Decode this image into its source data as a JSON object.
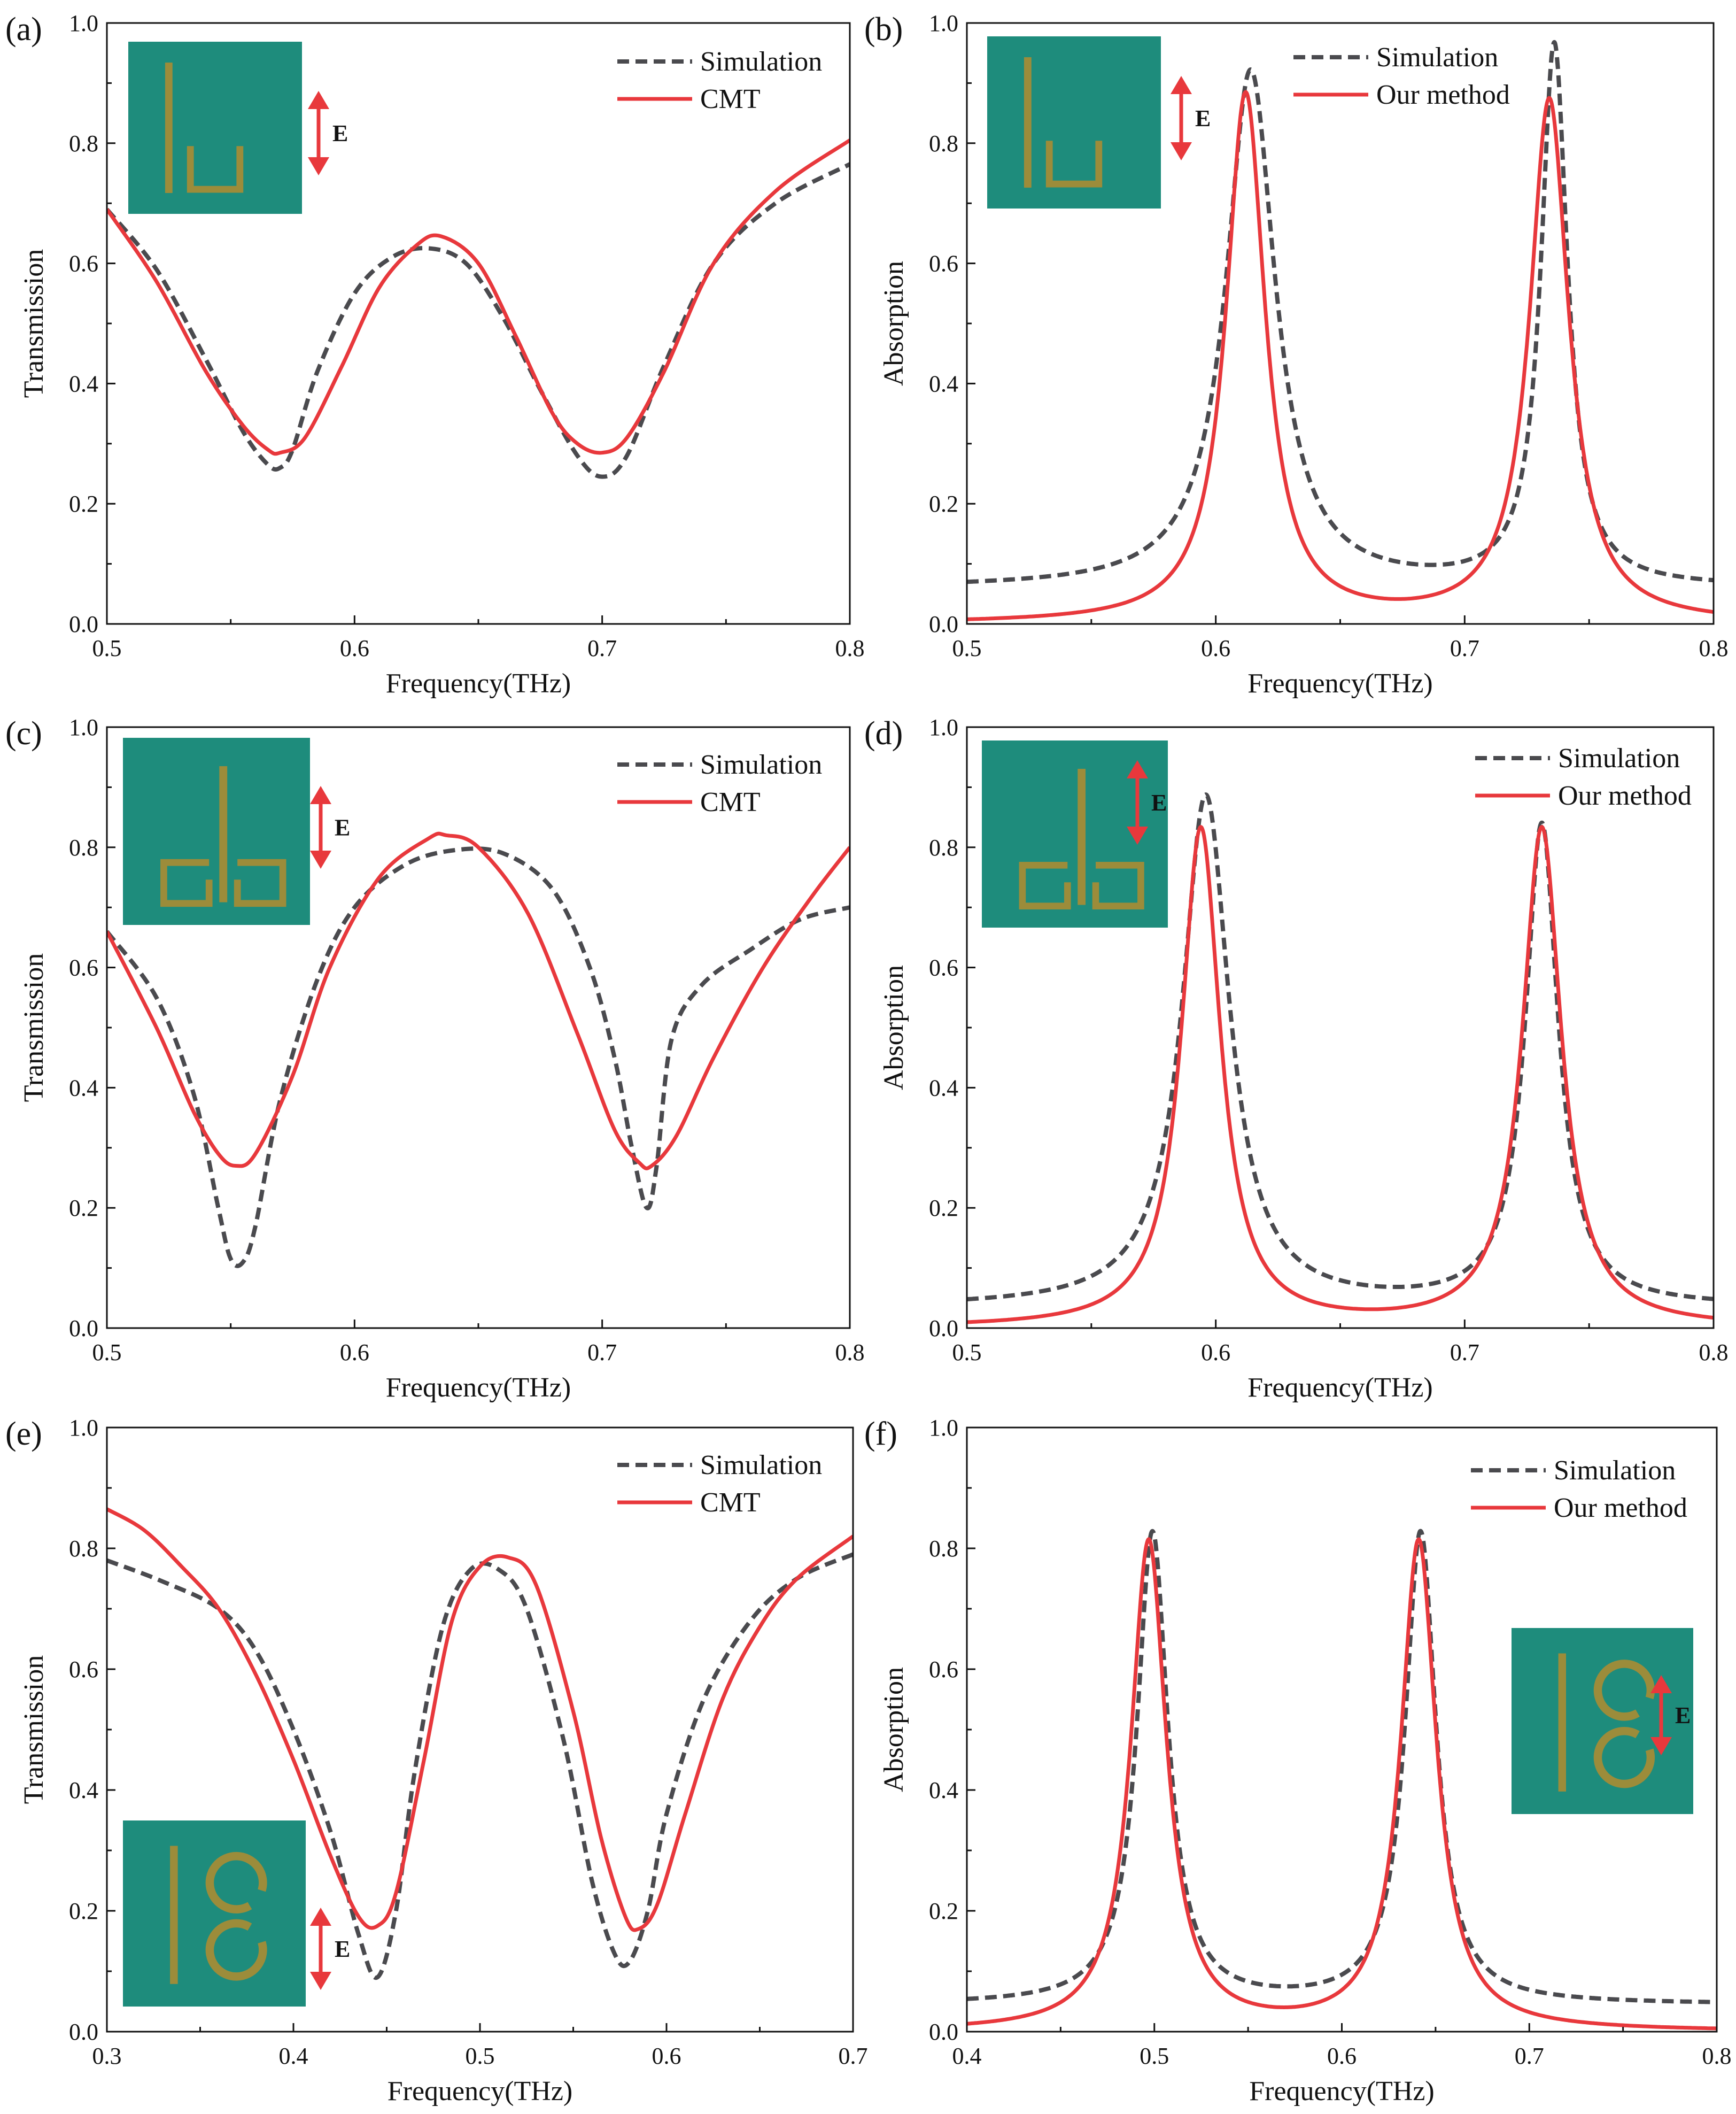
{
  "figure": {
    "colors": {
      "simulation": "#4a4a4e",
      "model": "#e8383c",
      "inset_bg": "#1e8c7c",
      "inset_metal": "#9c8c3a",
      "arrow": "#e8383c",
      "axis": "#111111"
    },
    "inset_e_label": "E"
  },
  "chart_data": [
    {
      "panel": "(a)",
      "type": "line",
      "xlabel": "Frequency(THz)",
      "ylabel": "Transmission",
      "xlim": [
        0.5,
        0.8
      ],
      "ylim": [
        0.0,
        1.0
      ],
      "xticks": [
        "0.5",
        "0.6",
        "0.7",
        "0.8"
      ],
      "yticks": [
        "0.0",
        "0.2",
        "0.4",
        "0.6",
        "0.8",
        "1.0"
      ],
      "legend": [
        "Simulation",
        "CMT"
      ],
      "inset": "bar-u",
      "series": [
        {
          "name": "Simulation",
          "style": "dashed",
          "x": [
            0.5,
            0.52,
            0.54,
            0.555,
            0.565,
            0.57,
            0.575,
            0.585,
            0.6,
            0.615,
            0.63,
            0.645,
            0.66,
            0.675,
            0.69,
            0.7,
            0.71,
            0.725,
            0.745,
            0.77,
            0.8
          ],
          "y": [
            0.69,
            0.59,
            0.44,
            0.32,
            0.265,
            0.26,
            0.29,
            0.42,
            0.55,
            0.61,
            0.625,
            0.6,
            0.51,
            0.39,
            0.28,
            0.245,
            0.28,
            0.43,
            0.6,
            0.7,
            0.765
          ]
        },
        {
          "name": "CMT",
          "style": "solid",
          "x": [
            0.5,
            0.52,
            0.54,
            0.555,
            0.565,
            0.57,
            0.58,
            0.595,
            0.61,
            0.625,
            0.635,
            0.65,
            0.665,
            0.68,
            0.69,
            0.7,
            0.71,
            0.725,
            0.745,
            0.77,
            0.8
          ],
          "y": [
            0.69,
            0.57,
            0.42,
            0.33,
            0.29,
            0.285,
            0.31,
            0.43,
            0.56,
            0.63,
            0.645,
            0.6,
            0.48,
            0.35,
            0.3,
            0.285,
            0.31,
            0.42,
            0.6,
            0.72,
            0.805
          ]
        }
      ]
    },
    {
      "panel": "(b)",
      "type": "line",
      "xlabel": "Frequency(THz)",
      "ylabel": "Absorption",
      "xlim": [
        0.5,
        0.8
      ],
      "ylim": [
        0.0,
        1.0
      ],
      "xticks": [
        "0.5",
        "0.6",
        "0.7",
        "0.8"
      ],
      "yticks": [
        "0.0",
        "0.2",
        "0.4",
        "0.6",
        "0.8",
        "1.0"
      ],
      "legend": [
        "Simulation",
        "Our method"
      ],
      "inset": "bar-u",
      "series": [
        {
          "name": "Simulation",
          "style": "dashed",
          "type": "lorentz",
          "baseline": 0.06,
          "xmin": 0.5,
          "xmax": 0.8,
          "peaks": [
            {
              "x0": 0.614,
              "amp": 0.86,
              "w": 0.024
            },
            {
              "x0": 0.736,
              "amp": 0.9,
              "w": 0.013
            }
          ]
        },
        {
          "name": "Our method",
          "style": "solid",
          "type": "lorentz",
          "baseline": 0.0,
          "xmin": 0.5,
          "xmax": 0.8,
          "peaks": [
            {
              "x0": 0.612,
              "amp": 0.88,
              "w": 0.019
            },
            {
              "x0": 0.734,
              "amp": 0.87,
              "w": 0.019
            }
          ]
        }
      ]
    },
    {
      "panel": "(c)",
      "type": "line",
      "xlabel": "Frequency(THz)",
      "ylabel": "Transmission",
      "xlim": [
        0.5,
        0.8
      ],
      "ylim": [
        0.0,
        1.0
      ],
      "xticks": [
        "0.5",
        "0.6",
        "0.7",
        "0.8"
      ],
      "yticks": [
        "0.0",
        "0.2",
        "0.4",
        "0.6",
        "0.8",
        "1.0"
      ],
      "legend": [
        "Simulation",
        "CMT"
      ],
      "inset": "bar-squares",
      "series": [
        {
          "name": "Simulation",
          "style": "dashed",
          "x": [
            0.5,
            0.52,
            0.535,
            0.545,
            0.55,
            0.555,
            0.56,
            0.57,
            0.585,
            0.6,
            0.62,
            0.64,
            0.66,
            0.68,
            0.695,
            0.705,
            0.712,
            0.718,
            0.722,
            0.728,
            0.74,
            0.76,
            0.78,
            0.8
          ],
          "y": [
            0.66,
            0.55,
            0.39,
            0.2,
            0.115,
            0.11,
            0.17,
            0.38,
            0.58,
            0.7,
            0.77,
            0.795,
            0.79,
            0.73,
            0.6,
            0.45,
            0.3,
            0.2,
            0.27,
            0.48,
            0.57,
            0.63,
            0.68,
            0.7
          ]
        },
        {
          "name": "CMT",
          "style": "solid",
          "x": [
            0.5,
            0.52,
            0.535,
            0.545,
            0.552,
            0.56,
            0.575,
            0.59,
            0.61,
            0.63,
            0.637,
            0.65,
            0.67,
            0.69,
            0.705,
            0.715,
            0.72,
            0.73,
            0.745,
            0.765,
            0.785,
            0.8
          ],
          "y": [
            0.66,
            0.5,
            0.36,
            0.29,
            0.27,
            0.29,
            0.42,
            0.6,
            0.75,
            0.815,
            0.82,
            0.8,
            0.69,
            0.49,
            0.33,
            0.275,
            0.27,
            0.32,
            0.45,
            0.6,
            0.72,
            0.8
          ]
        }
      ]
    },
    {
      "panel": "(d)",
      "type": "line",
      "xlabel": "Frequency(THz)",
      "ylabel": "Absorption",
      "xlim": [
        0.5,
        0.8
      ],
      "ylim": [
        0.0,
        1.0
      ],
      "xticks": [
        "0.5",
        "0.6",
        "0.7",
        "0.8"
      ],
      "yticks": [
        "0.0",
        "0.2",
        "0.4",
        "0.6",
        "0.8",
        "1.0"
      ],
      "legend": [
        "Simulation",
        "Our method"
      ],
      "inset": "bar-squares",
      "series": [
        {
          "name": "Simulation",
          "style": "dashed",
          "type": "lorentz",
          "baseline": 0.035,
          "xmin": 0.5,
          "xmax": 0.8,
          "peaks": [
            {
              "x0": 0.596,
              "amp": 0.85,
              "w": 0.023
            },
            {
              "x0": 0.731,
              "amp": 0.8,
              "w": 0.016
            }
          ]
        },
        {
          "name": "Our method",
          "style": "solid",
          "type": "lorentz",
          "baseline": 0.0,
          "xmin": 0.5,
          "xmax": 0.8,
          "peaks": [
            {
              "x0": 0.594,
              "amp": 0.83,
              "w": 0.019
            },
            {
              "x0": 0.731,
              "amp": 0.83,
              "w": 0.019
            }
          ]
        }
      ]
    },
    {
      "panel": "(e)",
      "type": "line",
      "xlabel": "Frequency(THz)",
      "ylabel": "Transmission",
      "xlim": [
        0.3,
        0.7
      ],
      "ylim": [
        0.0,
        1.0
      ],
      "xticks": [
        "0.3",
        "0.4",
        "0.5",
        "0.6",
        "0.7"
      ],
      "yticks": [
        "0.0",
        "0.2",
        "0.4",
        "0.6",
        "0.8",
        "1.0"
      ],
      "legend": [
        "Simulation",
        "CMT"
      ],
      "inset": "bar-rings",
      "series": [
        {
          "name": "Simulation",
          "style": "dashed",
          "x": [
            0.3,
            0.33,
            0.36,
            0.38,
            0.4,
            0.42,
            0.435,
            0.445,
            0.455,
            0.465,
            0.48,
            0.495,
            0.51,
            0.525,
            0.545,
            0.56,
            0.572,
            0.58,
            0.59,
            0.6,
            0.62,
            0.645,
            0.67,
            0.7
          ],
          "y": [
            0.78,
            0.745,
            0.7,
            0.63,
            0.5,
            0.33,
            0.16,
            0.09,
            0.2,
            0.43,
            0.67,
            0.765,
            0.765,
            0.7,
            0.48,
            0.25,
            0.13,
            0.115,
            0.2,
            0.36,
            0.55,
            0.68,
            0.75,
            0.79
          ]
        },
        {
          "name": "CMT",
          "style": "solid",
          "x": [
            0.3,
            0.32,
            0.34,
            0.36,
            0.38,
            0.4,
            0.42,
            0.435,
            0.445,
            0.455,
            0.47,
            0.485,
            0.5,
            0.515,
            0.53,
            0.55,
            0.565,
            0.578,
            0.585,
            0.595,
            0.61,
            0.63,
            0.65,
            0.67,
            0.7
          ],
          "y": [
            0.865,
            0.83,
            0.77,
            0.7,
            0.59,
            0.45,
            0.29,
            0.19,
            0.175,
            0.23,
            0.45,
            0.68,
            0.77,
            0.785,
            0.74,
            0.53,
            0.32,
            0.19,
            0.17,
            0.21,
            0.36,
            0.55,
            0.67,
            0.75,
            0.82
          ]
        }
      ]
    },
    {
      "panel": "(f)",
      "type": "line",
      "xlabel": "Frequency(THz)",
      "ylabel": "Absorption",
      "xlim": [
        0.4,
        0.8
      ],
      "ylim": [
        0.0,
        1.0
      ],
      "xticks": [
        "0.4",
        "0.5",
        "0.6",
        "0.7",
        "0.8"
      ],
      "yticks": [
        "0.0",
        "0.2",
        "0.4",
        "0.6",
        "0.8",
        "1.0"
      ],
      "legend": [
        "Simulation",
        "Our method"
      ],
      "inset": "bar-rings",
      "series": [
        {
          "name": "Simulation",
          "style": "dashed",
          "type": "lorentz",
          "baseline": 0.045,
          "xmin": 0.4,
          "xmax": 0.8,
          "peaks": [
            {
              "x0": 0.499,
              "amp": 0.78,
              "w": 0.02
            },
            {
              "x0": 0.642,
              "amp": 0.78,
              "w": 0.02
            }
          ]
        },
        {
          "name": "Our method",
          "style": "solid",
          "type": "lorentz",
          "baseline": 0.0,
          "xmin": 0.4,
          "xmax": 0.8,
          "peaks": [
            {
              "x0": 0.497,
              "amp": 0.81,
              "w": 0.023
            },
            {
              "x0": 0.641,
              "amp": 0.81,
              "w": 0.023
            }
          ]
        }
      ]
    }
  ]
}
